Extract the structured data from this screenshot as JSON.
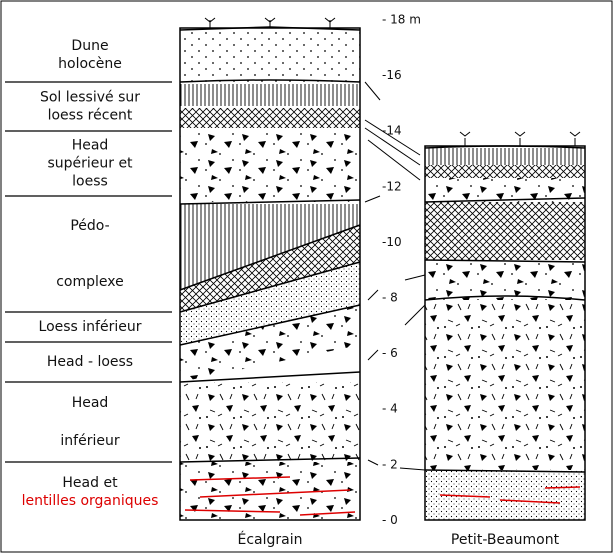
{
  "layers": [
    {
      "lines": [
        "Dune",
        "holocène"
      ]
    },
    {
      "lines": [
        "Sol lessivé sur",
        "loess récent"
      ]
    },
    {
      "lines": [
        "Head",
        "supérieur et",
        "loess"
      ]
    },
    {
      "lines": [
        "Pédo-",
        "complexe"
      ]
    },
    {
      "lines": [
        "Loess inférieur"
      ]
    },
    {
      "lines": [
        "Head - loess"
      ]
    },
    {
      "lines": [
        "Head",
        "inférieur"
      ]
    },
    {
      "lines": [
        "Head et",
        "lentilles organiques"
      ]
    }
  ],
  "scale": [
    "- 18 m",
    "-16",
    "-14",
    "-12",
    "-10",
    "- 8",
    "- 6",
    "- 4",
    "- 2",
    "- 0"
  ],
  "sites": [
    "Écalgrain",
    "Petit-Beaumont"
  ]
}
